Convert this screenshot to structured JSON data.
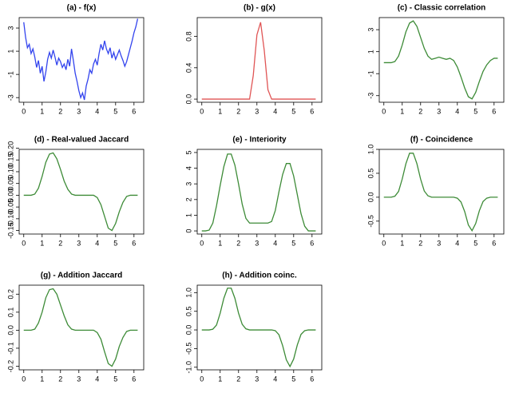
{
  "chart_data": [
    {
      "type": "line",
      "title": "(a) - f(x)",
      "color": "#3344ee",
      "x": [
        0,
        0.1,
        0.2,
        0.3,
        0.4,
        0.5,
        0.6,
        0.7,
        0.8,
        0.9,
        1,
        1.1,
        1.2,
        1.3,
        1.4,
        1.5,
        1.6,
        1.7,
        1.8,
        1.9,
        2,
        2.1,
        2.2,
        2.3,
        2.4,
        2.5,
        2.6,
        2.7,
        2.8,
        2.9,
        3,
        3.1,
        3.2,
        3.3,
        3.4,
        3.5,
        3.6,
        3.7,
        3.8,
        3.9,
        4,
        4.1,
        4.2,
        4.3,
        4.4,
        4.5,
        4.6,
        4.7,
        4.8,
        4.9,
        5,
        5.1,
        5.2,
        5.3,
        5.4,
        5.5,
        5.6,
        5.7,
        5.8,
        5.9,
        6,
        6.1,
        6.2
      ],
      "values": [
        3.5,
        2.2,
        1.3,
        1.6,
        0.8,
        1.2,
        0.5,
        -0.4,
        0.2,
        -0.9,
        -0.3,
        -1.6,
        -0.8,
        0.3,
        0.9,
        0.4,
        1.1,
        0.5,
        -0.2,
        0.4,
        0.1,
        -0.4,
        -0.1,
        -0.6,
        0.3,
        -0.3,
        1.2,
        0.2,
        -0.9,
        -1.6,
        -2.4,
        -3.0,
        -2.6,
        -3.2,
        -2.0,
        -1.4,
        -0.6,
        -0.9,
        -0.1,
        0.3,
        -0.2,
        0.8,
        1.6,
        1.1,
        1.9,
        1.2,
        0.8,
        1.3,
        0.4,
        0.9,
        0.3,
        0.7,
        1.1,
        0.6,
        0.2,
        -0.3,
        0.1,
        0.7,
        1.3,
        1.9,
        2.6,
        3.1,
        3.8
      ],
      "xlim": [
        -0.25,
        6.53
      ],
      "xticks": [
        0,
        1,
        2,
        3,
        4,
        5,
        6
      ],
      "ylim": [
        -3.4,
        3.9
      ],
      "yticks": [
        -3,
        -1,
        1,
        3
      ]
    },
    {
      "type": "line",
      "title": "(b) - g(x)",
      "color": "#e05555",
      "x": [
        0,
        0.2,
        0.4,
        0.6,
        0.8,
        1,
        1.2,
        1.4,
        1.6,
        1.8,
        2,
        2.2,
        2.4,
        2.6,
        2.8,
        3,
        3.2,
        3.4,
        3.6,
        3.8,
        4,
        4.2,
        4.4,
        4.6,
        4.8,
        5,
        5.2,
        5.4,
        5.6,
        5.8,
        6,
        6.2
      ],
      "values": [
        0,
        0,
        0,
        0,
        0,
        0,
        0,
        0,
        0,
        0,
        0,
        0,
        0,
        0,
        0.3,
        0.82,
        0.98,
        0.62,
        0.12,
        0,
        0,
        0,
        0,
        0,
        0,
        0,
        0,
        0,
        0,
        0,
        0,
        0
      ],
      "xlim": [
        -0.25,
        6.53
      ],
      "xticks": [
        0,
        1,
        2,
        3,
        4,
        5,
        6
      ],
      "ylim": [
        -0.04,
        1.04
      ],
      "yticks": [
        {
          "value": 0,
          "label": "0.0"
        },
        0.4,
        0.8
      ]
    },
    {
      "type": "line",
      "title": "(c) - Classic correlation",
      "color": "#3d8b37",
      "x": [
        0,
        0.2,
        0.4,
        0.6,
        0.8,
        1,
        1.2,
        1.4,
        1.6,
        1.8,
        2,
        2.2,
        2.4,
        2.6,
        2.8,
        3,
        3.2,
        3.4,
        3.6,
        3.8,
        4,
        4.2,
        4.4,
        4.6,
        4.8,
        5,
        5.2,
        5.4,
        5.6,
        5.8,
        6,
        6.2
      ],
      "values": [
        0,
        0,
        0,
        0.1,
        0.6,
        1.6,
        2.8,
        3.6,
        3.8,
        3.3,
        2.3,
        1.3,
        0.6,
        0.3,
        0.4,
        0.5,
        0.4,
        0.3,
        0.4,
        0.2,
        -0.4,
        -1.3,
        -2.3,
        -3.1,
        -3.3,
        -2.7,
        -1.7,
        -0.8,
        -0.2,
        0.2,
        0.4,
        0.4
      ],
      "xlim": [
        -0.25,
        6.53
      ],
      "xticks": [
        0,
        1,
        2,
        3,
        4,
        5,
        6
      ],
      "ylim": [
        -3.6,
        4.1
      ],
      "yticks": [
        -3,
        -1,
        1,
        3
      ]
    },
    {
      "type": "line",
      "title": "(d) - Real-valued Jaccard",
      "color": "#3d8b37",
      "x": [
        0,
        0.2,
        0.4,
        0.6,
        0.8,
        1,
        1.2,
        1.4,
        1.6,
        1.8,
        2,
        2.2,
        2.4,
        2.6,
        2.8,
        3,
        3.2,
        3.4,
        3.6,
        3.8,
        4,
        4.2,
        4.4,
        4.6,
        4.8,
        5,
        5.2,
        5.4,
        5.6,
        5.8,
        6,
        6.2
      ],
      "values": [
        0,
        0,
        0,
        0.005,
        0.03,
        0.08,
        0.14,
        0.175,
        0.18,
        0.155,
        0.11,
        0.06,
        0.025,
        0.005,
        0,
        0,
        0,
        0,
        0,
        0,
        -0.01,
        -0.04,
        -0.09,
        -0.14,
        -0.15,
        -0.12,
        -0.07,
        -0.03,
        -0.005,
        0,
        0,
        0
      ],
      "xlim": [
        -0.25,
        6.53
      ],
      "xticks": [
        0,
        1,
        2,
        3,
        4,
        5,
        6
      ],
      "ylim": [
        -0.165,
        0.195
      ],
      "yticks": [
        {
          "value": -0.15,
          "label": "-0.15"
        },
        {
          "value": -0.1,
          "label": "-0.10"
        },
        {
          "value": -0.05,
          "label": "-0.05"
        },
        {
          "value": 0,
          "label": "0.00"
        },
        {
          "value": 0.05,
          "label": "0.05"
        },
        {
          "value": 0.1,
          "label": "0.10"
        },
        {
          "value": 0.15,
          "label": "0.15"
        },
        {
          "value": 0.2,
          "label": "0.20"
        }
      ]
    },
    {
      "type": "line",
      "title": "(e) - Interiority",
      "color": "#3d8b37",
      "x": [
        0,
        0.2,
        0.4,
        0.6,
        0.8,
        1,
        1.2,
        1.4,
        1.6,
        1.8,
        2,
        2.2,
        2.4,
        2.6,
        2.8,
        3,
        3.2,
        3.4,
        3.6,
        3.8,
        4,
        4.2,
        4.4,
        4.6,
        4.8,
        5,
        5.2,
        5.4,
        5.6,
        5.8,
        6,
        6.2
      ],
      "values": [
        0,
        0,
        0.05,
        0.5,
        1.6,
        2.9,
        4.1,
        4.9,
        4.9,
        4.2,
        3.0,
        1.7,
        0.8,
        0.5,
        0.5,
        0.5,
        0.5,
        0.5,
        0.5,
        0.6,
        1.3,
        2.5,
        3.6,
        4.3,
        4.3,
        3.5,
        2.3,
        1.1,
        0.3,
        0,
        0,
        0
      ],
      "xlim": [
        -0.25,
        6.53
      ],
      "xticks": [
        0,
        1,
        2,
        3,
        4,
        5,
        6
      ],
      "ylim": [
        -0.2,
        5.2
      ],
      "yticks": [
        0,
        1,
        2,
        3,
        4,
        5
      ]
    },
    {
      "type": "line",
      "title": "(f) - Coincidence",
      "color": "#3d8b37",
      "x": [
        0,
        0.2,
        0.4,
        0.6,
        0.8,
        1,
        1.2,
        1.4,
        1.6,
        1.8,
        2,
        2.2,
        2.4,
        2.6,
        2.8,
        3,
        3.2,
        3.4,
        3.6,
        3.8,
        4,
        4.2,
        4.4,
        4.6,
        4.8,
        5,
        5.2,
        5.4,
        5.6,
        5.8,
        6,
        6.2
      ],
      "values": [
        0,
        0,
        0,
        0.02,
        0.12,
        0.38,
        0.7,
        0.92,
        0.92,
        0.7,
        0.38,
        0.13,
        0.03,
        0,
        0,
        0,
        0,
        0,
        0,
        0,
        -0.02,
        -0.1,
        -0.3,
        -0.58,
        -0.7,
        -0.55,
        -0.28,
        -0.09,
        -0.02,
        0,
        0,
        0
      ],
      "xlim": [
        -0.25,
        6.53
      ],
      "xticks": [
        0,
        1,
        2,
        3,
        4,
        5,
        6
      ],
      "ylim": [
        -0.77,
        1.0
      ],
      "yticks": [
        -0.5,
        {
          "value": 0,
          "label": "0.0"
        },
        0.5,
        {
          "value": 1,
          "label": "1.0"
        }
      ]
    },
    {
      "type": "line",
      "title": "(g) - Addition Jaccard",
      "color": "#3d8b37",
      "x": [
        0,
        0.2,
        0.4,
        0.6,
        0.8,
        1,
        1.2,
        1.4,
        1.6,
        1.8,
        2,
        2.2,
        2.4,
        2.6,
        2.8,
        3,
        3.2,
        3.4,
        3.6,
        3.8,
        4,
        4.2,
        4.4,
        4.6,
        4.8,
        5,
        5.2,
        5.4,
        5.6,
        5.8,
        6,
        6.2
      ],
      "values": [
        0,
        0,
        0,
        0.006,
        0.04,
        0.1,
        0.18,
        0.225,
        0.23,
        0.2,
        0.14,
        0.08,
        0.03,
        0.006,
        0,
        0,
        0,
        0,
        0,
        0,
        -0.013,
        -0.05,
        -0.12,
        -0.185,
        -0.2,
        -0.16,
        -0.09,
        -0.04,
        -0.007,
        0,
        0,
        0
      ],
      "xlim": [
        -0.25,
        6.53
      ],
      "xticks": [
        0,
        1,
        2,
        3,
        4,
        5,
        6
      ],
      "ylim": [
        -0.22,
        0.25
      ],
      "yticks": [
        -0.2,
        -0.1,
        {
          "value": 0,
          "label": "0.0"
        },
        0.1,
        0.2
      ]
    },
    {
      "type": "line",
      "title": "(h) - Addition coinc.",
      "color": "#3d8b37",
      "x": [
        0,
        0.2,
        0.4,
        0.6,
        0.8,
        1,
        1.2,
        1.4,
        1.6,
        1.8,
        2,
        2.2,
        2.4,
        2.6,
        2.8,
        3,
        3.2,
        3.4,
        3.6,
        3.8,
        4,
        4.2,
        4.4,
        4.6,
        4.8,
        5,
        5.2,
        5.4,
        5.6,
        5.8,
        6,
        6.2
      ],
      "values": [
        0,
        0,
        0,
        0.02,
        0.13,
        0.45,
        0.85,
        1.12,
        1.12,
        0.85,
        0.45,
        0.15,
        0.03,
        0,
        0,
        0,
        0,
        0,
        0,
        0,
        -0.02,
        -0.13,
        -0.42,
        -0.8,
        -0.98,
        -0.78,
        -0.4,
        -0.12,
        -0.02,
        0,
        0,
        0
      ],
      "xlim": [
        -0.25,
        6.53
      ],
      "xticks": [
        0,
        1,
        2,
        3,
        4,
        5,
        6
      ],
      "ylim": [
        -1.07,
        1.2
      ],
      "yticks": [
        {
          "value": -1,
          "label": "-1.0"
        },
        -0.5,
        {
          "value": 0,
          "label": "0.0"
        },
        0.5,
        {
          "value": 1,
          "label": "1.0"
        }
      ]
    }
  ]
}
